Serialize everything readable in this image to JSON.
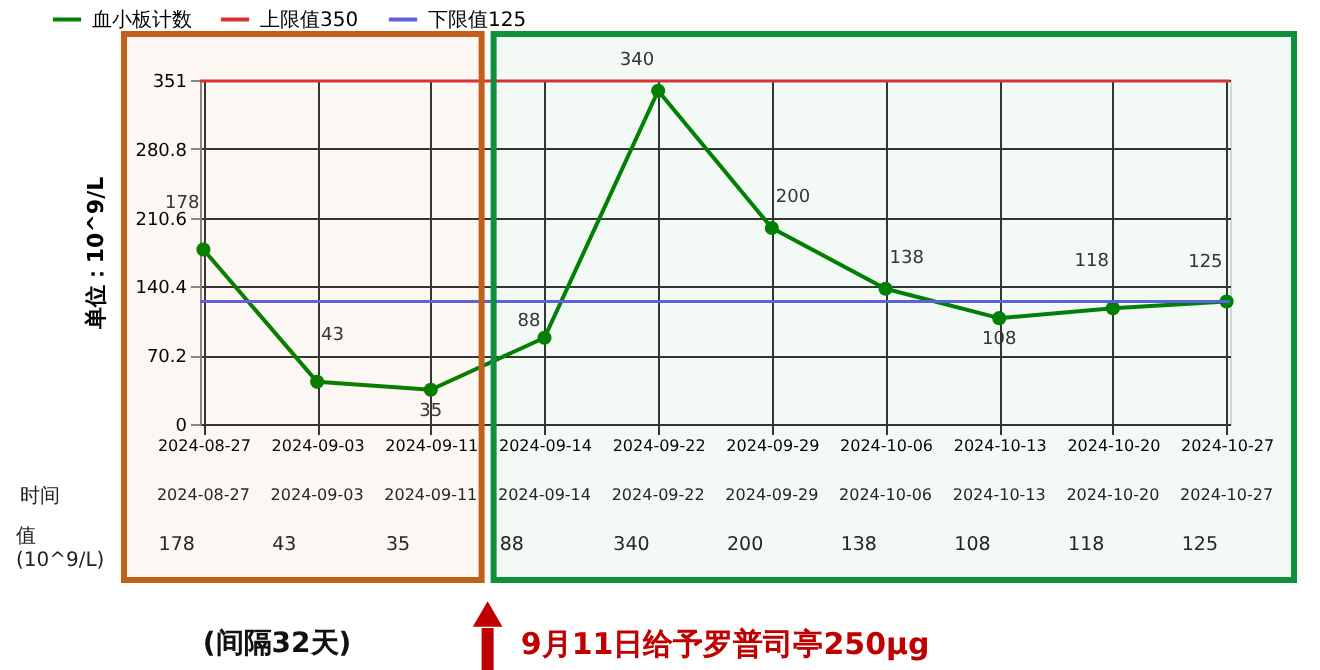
{
  "chart_data": {
    "type": "line",
    "ylabel": "单位：10^9/L",
    "categories": [
      "2024-08-27",
      "2024-09-03",
      "2024-09-11",
      "2024-09-14",
      "2024-09-22",
      "2024-09-29",
      "2024-10-06",
      "2024-10-13",
      "2024-10-20",
      "2024-10-27"
    ],
    "series": [
      {
        "name": "血小板计数",
        "color": "#008000",
        "values": [
          178,
          43,
          35,
          88,
          340,
          200,
          138,
          108,
          118,
          125
        ]
      }
    ],
    "ylim": [
      0,
      351
    ],
    "yticks": [
      0,
      70.2,
      140.4,
      210.6,
      280.8,
      351
    ],
    "ref_lines": [
      {
        "axis": "y",
        "value": 350,
        "label": "上限值350",
        "color": "#e03030"
      },
      {
        "axis": "y",
        "value": 125,
        "label": "下限值125",
        "color": "#6060e0"
      }
    ],
    "bands": [
      {
        "axis": "x",
        "from": "2024-08-27",
        "to": "2024-09-11",
        "color": "#c0601a"
      },
      {
        "axis": "x",
        "from": "2024-09-14",
        "to": "2024-10-27",
        "color": "#10903c"
      }
    ],
    "annotations": [
      "时间",
      "值\n(10^9/L)",
      "(间隔32天)",
      "9月11日给予罗普司亭250μg",
      "178",
      "43",
      "35",
      "88",
      "340",
      "200",
      "138",
      "108",
      "118",
      "125"
    ],
    "data_labels": true,
    "grid": true,
    "legend": "top left",
    "marker": "circle",
    "line_style": "solid"
  }
}
